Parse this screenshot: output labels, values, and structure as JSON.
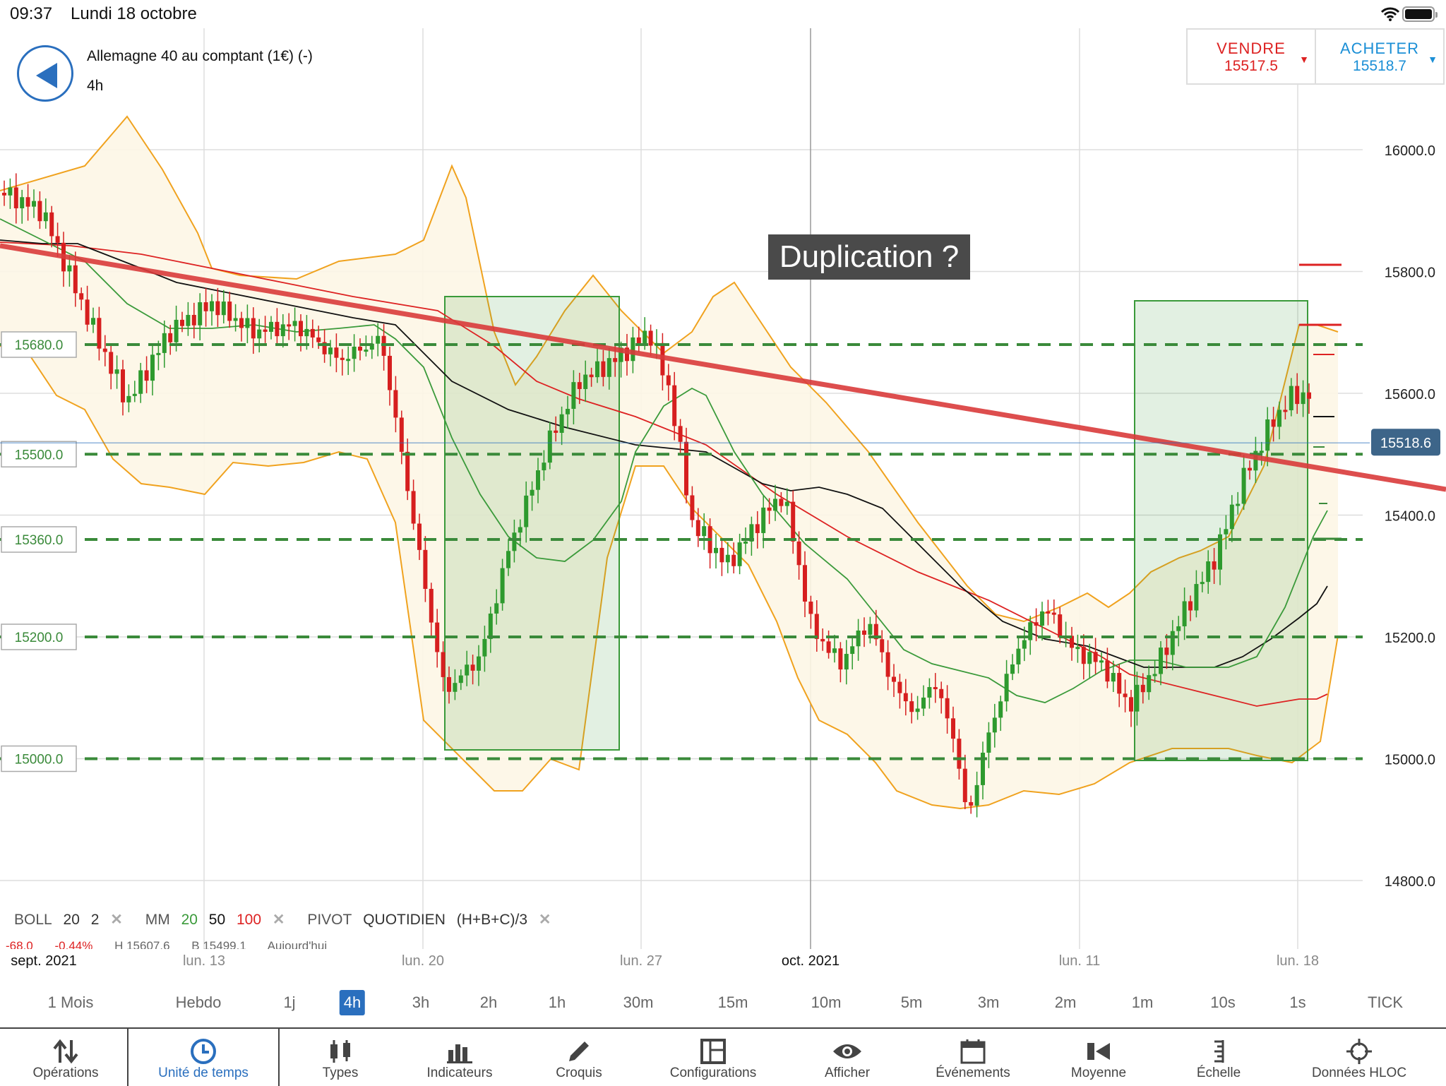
{
  "status_bar": {
    "time": "09:37",
    "date": "Lundi 18 octobre"
  },
  "header": {
    "instrument": "Allemagne 40 au comptant (1€) (-)",
    "timeframe": "4h"
  },
  "trade": {
    "sell_label": "VENDRE",
    "sell_price": "15517.5",
    "buy_label": "ACHETER",
    "buy_price": "15518.7",
    "colors": {
      "sell": "#d22222",
      "buy": "#1b8fd6"
    }
  },
  "annotation": "Duplication ?",
  "price_axis": {
    "ticks": [
      "16000.0",
      "15800.0",
      "15600.0",
      "15400.0",
      "15200.0",
      "15000.0",
      "14800.0"
    ],
    "current_price": "15518.6"
  },
  "levels": [
    "15680.0",
    "15500.0",
    "15360.0",
    "15200.0",
    "15000.0"
  ],
  "indicators": {
    "boll": {
      "name": "BOLL",
      "period": "20",
      "dev": "2"
    },
    "mm": {
      "name": "MM",
      "p1": "20",
      "p2": "50",
      "p3": "100"
    },
    "pivot": {
      "name": "PIVOT",
      "mode": "QUOTIDIEN",
      "formula": "(H+B+C)/3"
    },
    "remove": "✕"
  },
  "ticker": {
    "change": "-68.0",
    "change_pct": "-0.44%",
    "high": "H 15607.6",
    "low": "B 15499.1",
    "today": "Aujourd'hui"
  },
  "date_axis": [
    "sept. 2021",
    "lun. 13",
    "lun. 20",
    "lun. 27",
    "oct. 2021",
    "lun. 11",
    "lun. 18"
  ],
  "timeframes": [
    "1 Mois",
    "Hebdo",
    "1j",
    "4h",
    "3h",
    "2h",
    "1h",
    "30m",
    "15m",
    "10m",
    "5m",
    "3m",
    "2m",
    "1m",
    "10s",
    "1s",
    "TICK"
  ],
  "active_timeframe": "4h",
  "toolbar": [
    "Opérations",
    "Unité de temps",
    "Types",
    "Indicateurs",
    "Croquis",
    "Configurations",
    "Afficher",
    "Événements",
    "Moyenne",
    "Échelle",
    "Données HLOC"
  ],
  "active_tool": "Unité de temps"
}
